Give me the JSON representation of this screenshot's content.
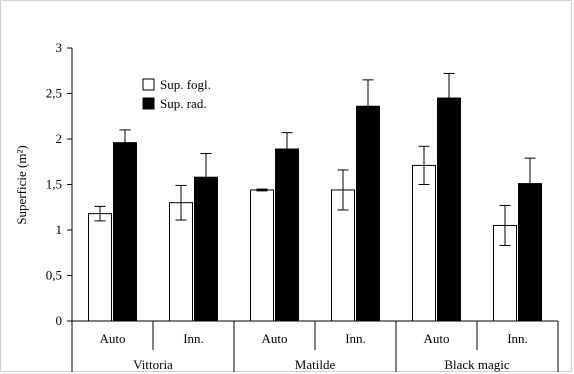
{
  "chart_data": {
    "type": "bar",
    "ylabel": "Superficie (m²)",
    "ylim": [
      0,
      3
    ],
    "ytick_labels": [
      "0",
      "0,5",
      "1",
      "1,5",
      "2",
      "2,5",
      "3"
    ],
    "yticks": [
      0,
      0.5,
      1,
      1.5,
      2,
      2.5,
      3
    ],
    "legend_position": "top-left",
    "categories": [
      "Auto",
      "Inn.",
      "Auto",
      "Inn.",
      "Auto",
      "Inn."
    ],
    "groups": [
      {
        "label": "Vittoria",
        "span": 2
      },
      {
        "label": "Matilde",
        "span": 2
      },
      {
        "label": "Black magic",
        "span": 2
      }
    ],
    "series": [
      {
        "name": "Sup. fogl.",
        "color": "#ffffff",
        "values": [
          1.18,
          1.3,
          1.44,
          1.44,
          1.71,
          1.05
        ],
        "errors": [
          0.08,
          0.19,
          0.01,
          0.22,
          0.21,
          0.22
        ]
      },
      {
        "name": "Sup. rad.",
        "color": "#000000",
        "values": [
          1.96,
          1.58,
          1.89,
          2.36,
          2.45,
          1.51
        ],
        "errors": [
          0.14,
          0.26,
          0.18,
          0.29,
          0.27,
          0.28
        ]
      }
    ]
  }
}
